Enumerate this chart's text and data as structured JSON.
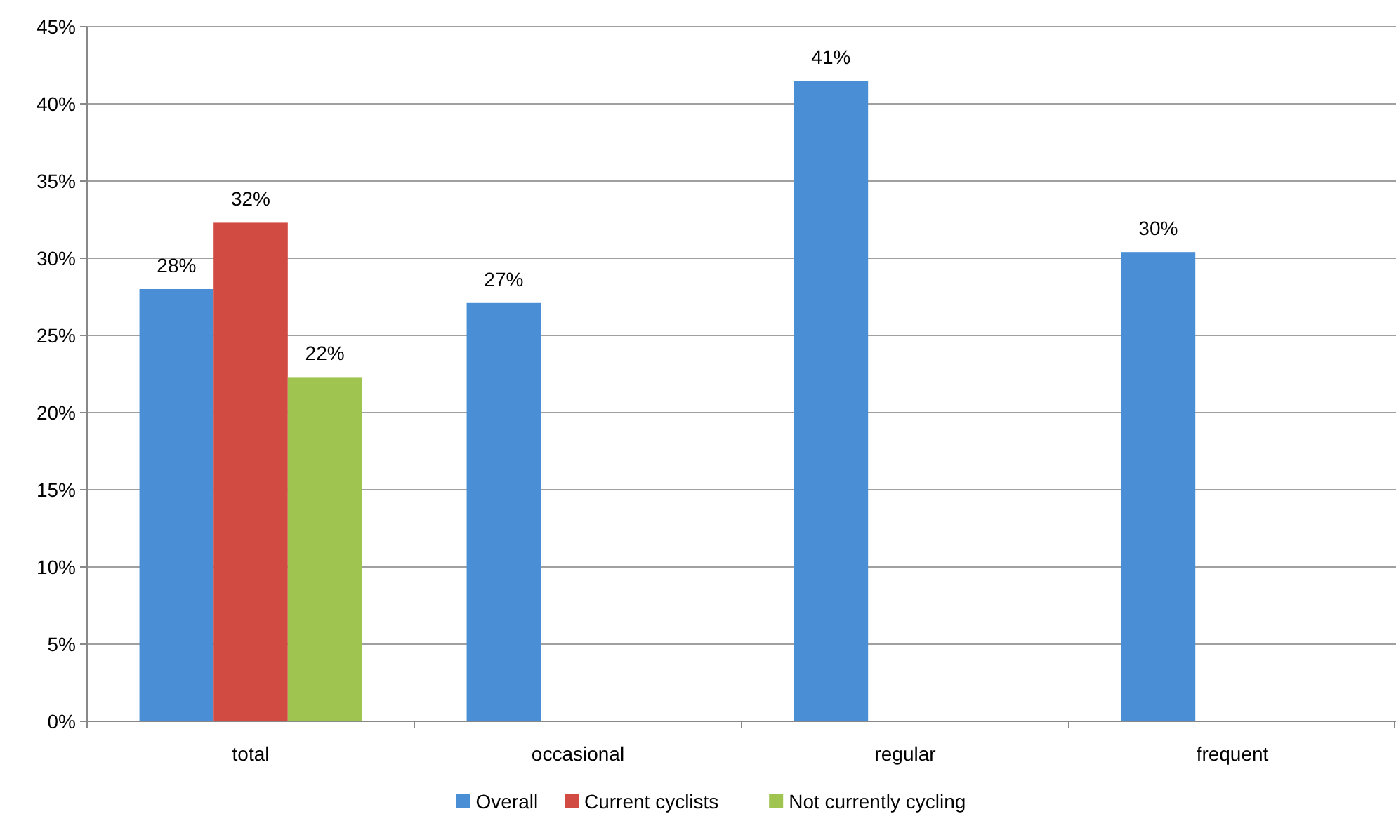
{
  "chart_data": {
    "type": "bar",
    "categories": [
      "total",
      "occasional",
      "regular",
      "frequent"
    ],
    "series": [
      {
        "name": "Overall",
        "color": "#4a8ed6",
        "values": [
          28.0,
          27.1,
          41.5,
          30.4
        ],
        "value_labels": [
          "28%",
          "27%",
          "41%",
          "30%"
        ]
      },
      {
        "name": "Current cyclists",
        "color": "#d24b42",
        "values": [
          32.3,
          null,
          null,
          null
        ],
        "value_labels": [
          "32%",
          null,
          null,
          null
        ]
      },
      {
        "name": "Not currently cycling",
        "color": "#9fc550",
        "values": [
          22.3,
          null,
          null,
          null
        ],
        "value_labels": [
          "22%",
          null,
          null,
          null
        ]
      }
    ],
    "ylim": [
      0,
      45
    ],
    "yticks": [
      {
        "value": 0,
        "label": "0%"
      },
      {
        "value": 5,
        "label": "5%"
      },
      {
        "value": 10,
        "label": "10%"
      },
      {
        "value": 15,
        "label": "15%"
      },
      {
        "value": 20,
        "label": "20%"
      },
      {
        "value": 25,
        "label": "25%"
      },
      {
        "value": 30,
        "label": "30%"
      },
      {
        "value": 35,
        "label": "35%"
      },
      {
        "value": 40,
        "label": "40%"
      },
      {
        "value": 45,
        "label": "45%"
      }
    ],
    "grid": "y",
    "legend": "bottom"
  }
}
